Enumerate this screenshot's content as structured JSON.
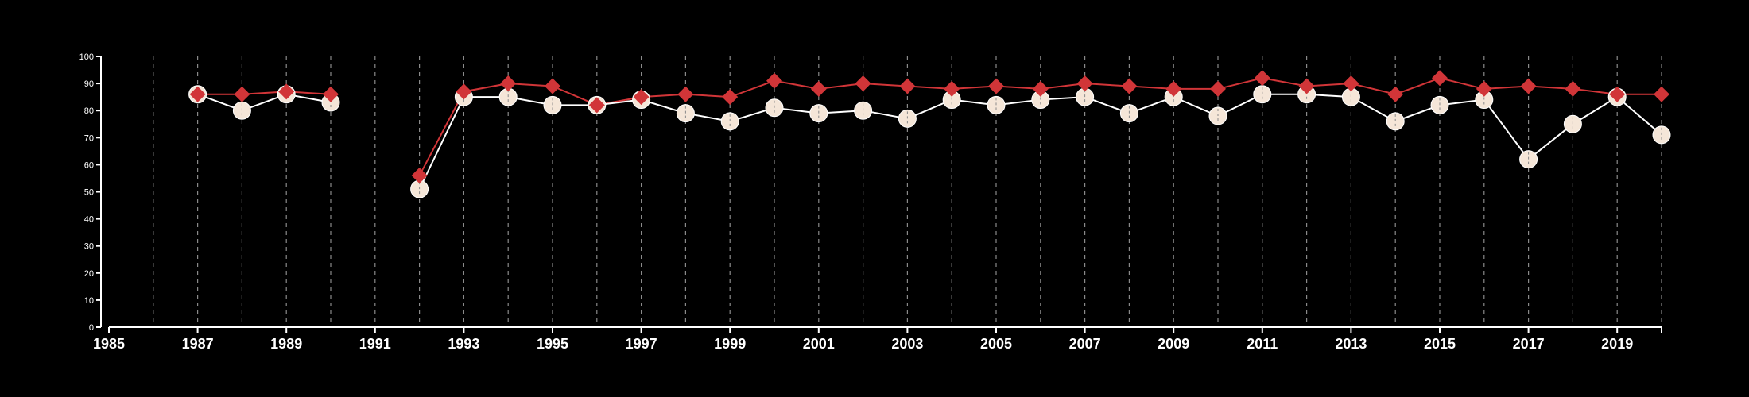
{
  "chart_data": {
    "type": "line",
    "title": "",
    "xlabel": "",
    "ylabel": "",
    "xlim": [
      1985,
      2020
    ],
    "ylim": [
      0,
      100
    ],
    "x_ticks": [
      "1985",
      "1987",
      "1989",
      "1991",
      "1993",
      "1995",
      "1997",
      "1999",
      "2001",
      "2003",
      "2005",
      "2007",
      "2009",
      "2011",
      "2013",
      "2015",
      "2017",
      "2019"
    ],
    "y_ticks": [
      "0",
      "10",
      "20",
      "30",
      "40",
      "50",
      "60",
      "70",
      "80",
      "90",
      "100"
    ],
    "grid": "vertical dashed lines at every year",
    "legend": "none",
    "x": [
      1987,
      1988,
      1989,
      1990,
      1992,
      1993,
      1994,
      1995,
      1996,
      1997,
      1998,
      1999,
      2000,
      2001,
      2002,
      2003,
      2004,
      2005,
      2006,
      2007,
      2008,
      2009,
      2010,
      2011,
      2012,
      2013,
      2014,
      2015,
      2016,
      2017,
      2018,
      2019,
      2020
    ],
    "series": [
      {
        "marker": "circle",
        "color": "#f5e6d8",
        "line_color": "#ffffff",
        "values": [
          86,
          80,
          86,
          83,
          51,
          85,
          85,
          82,
          82,
          84,
          79,
          76,
          81,
          79,
          80,
          77,
          84,
          82,
          84,
          85,
          79,
          85,
          78,
          86,
          86,
          85,
          76,
          82,
          84,
          62,
          75,
          85,
          71
        ]
      },
      {
        "marker": "diamond",
        "color": "#d13538",
        "line_color": "#d13538",
        "values": [
          86,
          86,
          87,
          86,
          56,
          87,
          90,
          89,
          82,
          85,
          86,
          85,
          91,
          88,
          90,
          89,
          88,
          89,
          88,
          90,
          89,
          88,
          88,
          92,
          89,
          90,
          86,
          92,
          88,
          89,
          88,
          86,
          86
        ]
      }
    ],
    "gap_before": 1992
  }
}
